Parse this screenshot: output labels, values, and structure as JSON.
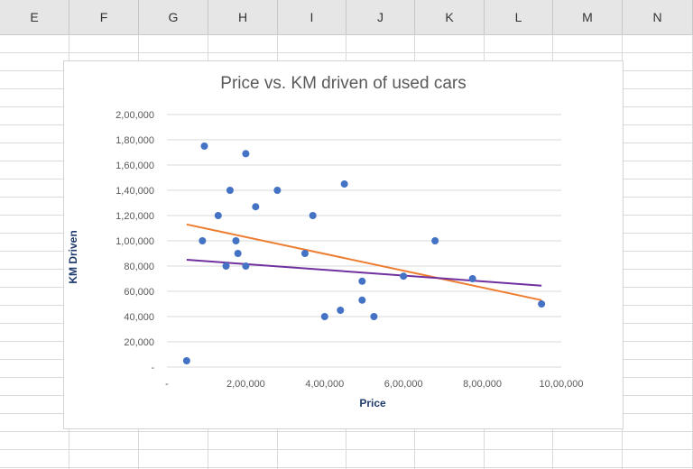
{
  "spreadsheet": {
    "columns": [
      "E",
      "F",
      "G",
      "H",
      "I",
      "J",
      "K",
      "L",
      "M",
      "N"
    ]
  },
  "chart_data": {
    "type": "scatter",
    "title": "Price vs. KM driven of used cars",
    "xlabel": "Price",
    "ylabel": "KM Driven",
    "xlim": [
      0,
      1000000
    ],
    "ylim": [
      0,
      200000
    ],
    "x_ticks": [
      0,
      200000,
      400000,
      600000,
      800000,
      1000000
    ],
    "x_tick_labels": [
      "-",
      "2,00,000",
      "4,00,000",
      "6,00,000",
      "8,00,000",
      "10,00,000"
    ],
    "y_ticks": [
      0,
      20000,
      40000,
      60000,
      80000,
      100000,
      120000,
      140000,
      160000,
      180000,
      200000
    ],
    "y_tick_labels": [
      "-",
      "20,000",
      "40,000",
      "60,000",
      "80,000",
      "1,00,000",
      "1,20,000",
      "1,40,000",
      "1,60,000",
      "1,80,000",
      "2,00,000"
    ],
    "grid": "horizontal",
    "series": [
      {
        "color": "#4472c4",
        "points": [
          {
            "x": 50000,
            "y": 5000
          },
          {
            "x": 90000,
            "y": 100000
          },
          {
            "x": 95000,
            "y": 175000
          },
          {
            "x": 130000,
            "y": 120000
          },
          {
            "x": 150000,
            "y": 80000
          },
          {
            "x": 160000,
            "y": 140000
          },
          {
            "x": 175000,
            "y": 100000
          },
          {
            "x": 180000,
            "y": 90000
          },
          {
            "x": 200000,
            "y": 80000
          },
          {
            "x": 200000,
            "y": 169000
          },
          {
            "x": 225000,
            "y": 127000
          },
          {
            "x": 280000,
            "y": 140000
          },
          {
            "x": 350000,
            "y": 90000
          },
          {
            "x": 370000,
            "y": 120000
          },
          {
            "x": 400000,
            "y": 40000
          },
          {
            "x": 440000,
            "y": 45000
          },
          {
            "x": 450000,
            "y": 145000
          },
          {
            "x": 495000,
            "y": 68000
          },
          {
            "x": 495000,
            "y": 53000
          },
          {
            "x": 525000,
            "y": 40000
          },
          {
            "x": 600000,
            "y": 72000
          },
          {
            "x": 680000,
            "y": 100000
          },
          {
            "x": 775000,
            "y": 70000
          },
          {
            "x": 950000,
            "y": 50000
          }
        ]
      }
    ],
    "trendlines": [
      {
        "color": "#ed7d31",
        "from": {
          "x": 50000,
          "y": 113000
        },
        "to": {
          "x": 950000,
          "y": 53000
        }
      },
      {
        "color": "#7030a0",
        "from": {
          "x": 50000,
          "y": 85000
        },
        "to": {
          "x": 950000,
          "y": 64500
        }
      }
    ]
  }
}
